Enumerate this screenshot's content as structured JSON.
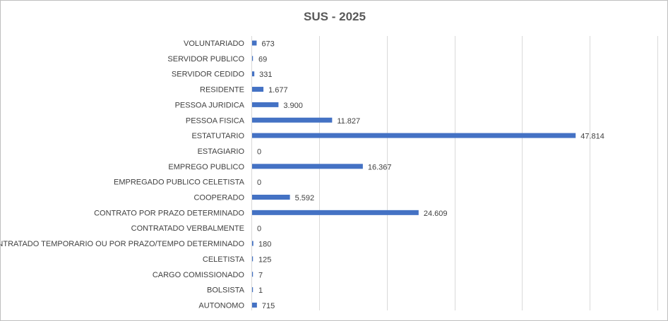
{
  "chart_data": {
    "type": "bar",
    "orientation": "horizontal",
    "title": "SUS - 2025",
    "categories": [
      "VOLUNTARIADO",
      "SERVIDOR PUBLICO",
      "SERVIDOR CEDIDO",
      "RESIDENTE",
      "PESSOA JURIDICA",
      "PESSOA FISICA",
      "ESTATUTARIO",
      "ESTAGIARIO",
      "EMPREGO PUBLICO",
      "EMPREGADO PUBLICO CELETISTA",
      "COOPERADO",
      "CONTRATO POR PRAZO DETERMINADO",
      "CONTRATADO VERBALMENTE",
      "CONTRATADO TEMPORARIO OU POR PRAZO/TEMPO DETERMINADO",
      "CELETISTA",
      "CARGO COMISSIONADO",
      "BOLSISTA",
      "AUTONOMO"
    ],
    "values": [
      673,
      69,
      331,
      1677,
      3900,
      11827,
      47814,
      0,
      16367,
      0,
      5592,
      24609,
      0,
      180,
      125,
      7,
      1,
      715
    ],
    "value_labels": [
      "673",
      "69",
      "331",
      "1.677",
      "3.900",
      "11.827",
      "47.814",
      "0",
      "16.367",
      "0",
      "5.592",
      "24.609",
      "0",
      "180",
      "125",
      "7",
      "1",
      "715"
    ],
    "xlim": [
      0,
      60000
    ],
    "x_gridline_step": 10000,
    "x_tick_labels_visible": false,
    "grid": true,
    "legend": "none",
    "bar_color": "#4472c4",
    "gridline_color": "#d9d9d9"
  }
}
